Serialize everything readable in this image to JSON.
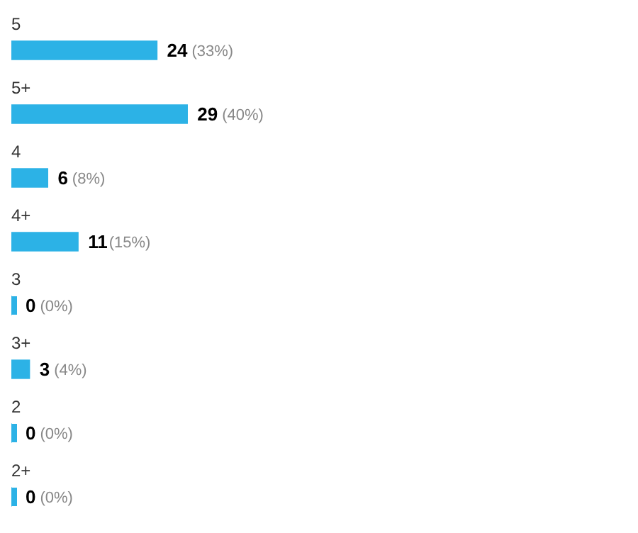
{
  "chart_data": {
    "type": "bar",
    "orientation": "horizontal",
    "categories": [
      "5",
      "5+",
      "4",
      "4+",
      "3",
      "3+",
      "2",
      "2+"
    ],
    "values": [
      24,
      29,
      6,
      11,
      0,
      3,
      0,
      0
    ],
    "value_labels": [
      "24 (33%)",
      "29 (40%)",
      "6 (8%)",
      "11(15%)",
      "0 (0%)",
      "3 (4%)",
      "0 (0%)",
      "0 (0%)"
    ],
    "color": "#2cb2e6",
    "legend": false
  }
}
